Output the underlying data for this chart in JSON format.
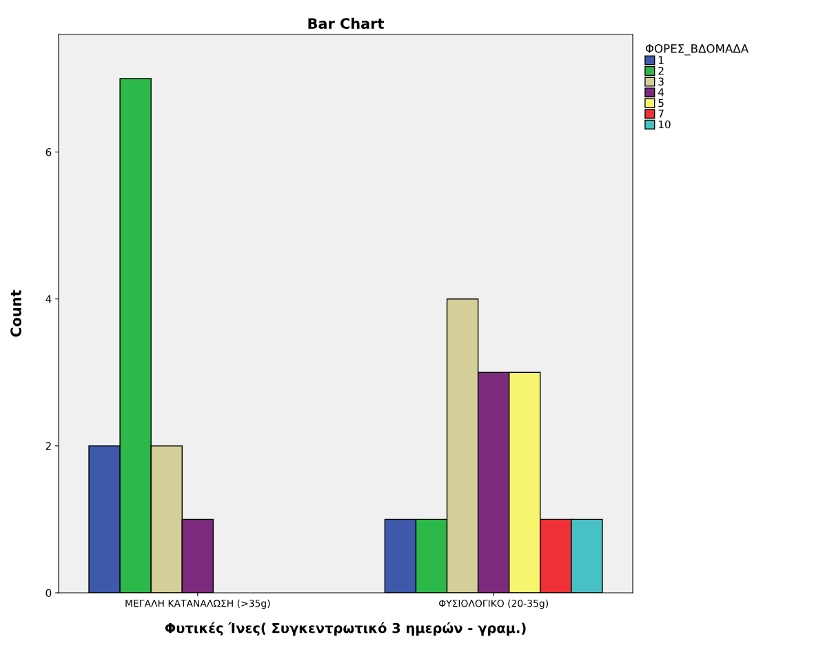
{
  "chart_data": {
    "type": "bar",
    "title": "Bar Chart",
    "xlabel": "Φυτικές Ίνες( Συγκεντρωτικό 3 ημερών - γραμ.)",
    "ylabel": "Count",
    "legend_title": "ΦΟΡΕΣ_ΒΔΟΜΑΔΑ",
    "categories": [
      "ΜΕΓΑΛΗ ΚΑΤΑΝΑΛΩΣΗ (>35g)",
      "ΦΥΣΙΟΛΟΓΙΚΟ (20-35g)"
    ],
    "series": [
      {
        "name": "1",
        "color": "#3e58ac",
        "values": [
          2,
          1
        ]
      },
      {
        "name": "2",
        "color": "#2db84a",
        "values": [
          7,
          1
        ]
      },
      {
        "name": "3",
        "color": "#d4ce98",
        "values": [
          2,
          4
        ]
      },
      {
        "name": "4",
        "color": "#7b2a7d",
        "values": [
          1,
          3
        ]
      },
      {
        "name": "5",
        "color": "#f7f56e",
        "values": [
          null,
          3
        ]
      },
      {
        "name": "7",
        "color": "#ee3237",
        "values": [
          null,
          1
        ]
      },
      {
        "name": "10",
        "color": "#48c1c4",
        "values": [
          null,
          1
        ]
      }
    ],
    "ylim": [
      0,
      7.6
    ],
    "yticks": [
      0,
      2,
      4,
      6
    ],
    "grid": false,
    "legend": "top right"
  }
}
